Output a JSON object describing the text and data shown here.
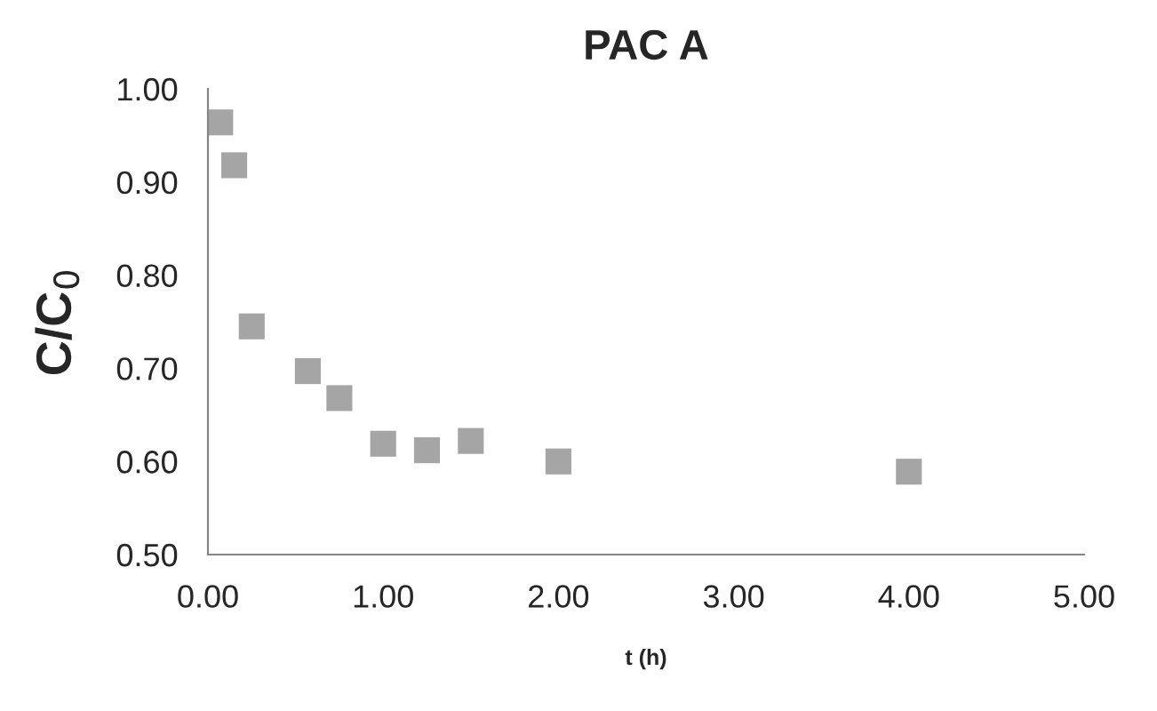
{
  "chart_data": {
    "type": "scatter",
    "title": "PAC A",
    "xlabel": "t (h)",
    "ylabel": "C/C$_{0}$",
    "x": [
      0.07,
      0.15,
      0.25,
      0.57,
      0.75,
      1.0,
      1.25,
      1.5,
      2.0,
      4.0
    ],
    "series": [
      {
        "color": "#a5a5a5",
        "values": [
          0.964,
          0.918,
          0.745,
          0.697,
          0.668,
          0.619,
          0.612,
          0.622,
          0.6,
          0.589
        ]
      }
    ],
    "xlim": [
      0,
      5
    ],
    "xticks": [
      {
        "value": 0,
        "label": "0.00"
      },
      {
        "value": 1,
        "label": "1.00"
      },
      {
        "value": 2,
        "label": "2.00"
      },
      {
        "value": 3,
        "label": "3.00"
      },
      {
        "value": 4,
        "label": "4.00"
      },
      {
        "value": 5,
        "label": "5.00"
      }
    ],
    "ylim": [
      0.5,
      1.0
    ],
    "yticks": [
      {
        "value": 0.5,
        "label": "0.50"
      },
      {
        "value": 0.6,
        "label": "0.60"
      },
      {
        "value": 0.7,
        "label": "0.70"
      },
      {
        "value": 0.8,
        "label": "0.80"
      },
      {
        "value": 0.9,
        "label": "0.90"
      },
      {
        "value": 1.0,
        "label": "1.00"
      }
    ],
    "marker": "square",
    "grid": false,
    "legend": false
  }
}
